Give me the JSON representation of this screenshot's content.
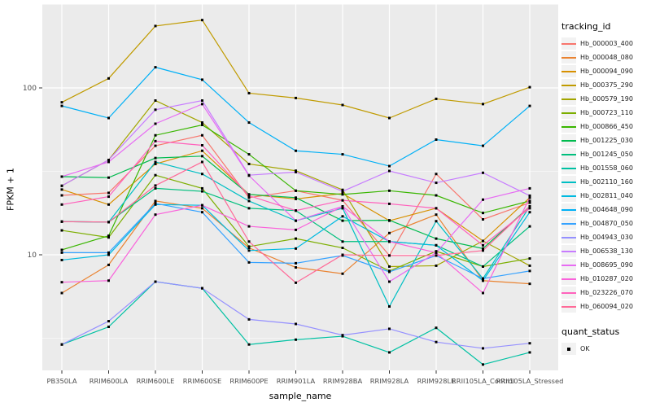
{
  "chart_data": {
    "type": "line",
    "title": "",
    "xlabel": "sample_name",
    "ylabel": "FPKM + 1",
    "y_scale": "log10",
    "y_ticks": [
      10,
      100
    ],
    "y_minor_ticks": [
      3.162,
      31.62,
      316.2
    ],
    "ylim": [
      2,
      300
    ],
    "grid": "major+minor",
    "legend_position": "right",
    "point_shape": "square",
    "point_color": "#000000",
    "panel_bg": "#EBEBEB",
    "grid_color": "#FFFFFF",
    "axis_text_color": "#4D4D4D",
    "categories": [
      "PB350LA",
      "RRIM600LA",
      "RRIM600LE",
      "RRIM600SE",
      "RRIM600PE",
      "RRIM901LA",
      "RRIM928BA",
      "RRIM928LA",
      "RRIM928LE",
      "RRII105LA_Control",
      "RRII105LA_Stressed"
    ],
    "series": [
      {
        "name": "Hb_000003_400",
        "color": "#F8766D",
        "values": [
          22.7,
          23.5,
          45,
          52,
          22,
          24.2,
          21.2,
          9.9,
          30.5,
          16.3,
          20.5
        ]
      },
      {
        "name": "Hb_000048_080",
        "color": "#EA8331",
        "values": [
          5.9,
          8.7,
          21,
          19,
          11,
          8.4,
          7.7,
          13.5,
          17.4,
          7.0,
          6.7
        ]
      },
      {
        "name": "Hb_000094_090",
        "color": "#D89000",
        "values": [
          24.6,
          20,
          35,
          42,
          23,
          21.6,
          23.3,
          16,
          19,
          12.1,
          22
        ]
      },
      {
        "name": "Hb_000375_290",
        "color": "#C09B00",
        "values": [
          82,
          114,
          235,
          255,
          93,
          87,
          79,
          66,
          86,
          80,
          101
        ]
      },
      {
        "name": "Hb_000579_190",
        "color": "#A3A500",
        "values": [
          25.9,
          37,
          84,
          62,
          35,
          31.9,
          24.5,
          8.5,
          8.6,
          12.1,
          8.6
        ]
      },
      {
        "name": "Hb_000723_110",
        "color": "#7CAE00",
        "values": [
          14,
          12.7,
          30,
          25,
          11.2,
          12.5,
          11,
          8,
          10.5,
          8.5,
          9.5
        ]
      },
      {
        "name": "Hb_000866_450",
        "color": "#39B600",
        "values": [
          10.7,
          13,
          52,
          60,
          40,
          24.2,
          23,
          24.2,
          22.7,
          17.8,
          21
        ]
      },
      {
        "name": "Hb_001225_030",
        "color": "#00BB4E",
        "values": [
          29.4,
          29,
          38,
          39,
          23,
          22,
          16,
          16.1,
          12.5,
          10.9,
          19.5
        ]
      },
      {
        "name": "Hb_001245_050",
        "color": "#00BF7D",
        "values": [
          15.8,
          15.7,
          25,
          24,
          19,
          18.4,
          12,
          12,
          11.4,
          8.5,
          14.8
        ]
      },
      {
        "name": "Hb_001558_060",
        "color": "#00C1A3",
        "values": [
          2.9,
          3.7,
          6.9,
          6.3,
          2.9,
          3.1,
          3.25,
          2.6,
          3.65,
          2.2,
          2.6
        ]
      },
      {
        "name": "Hb_002110_160",
        "color": "#00BFC4",
        "values": [
          15.8,
          15.7,
          36,
          30.5,
          21,
          16,
          19,
          4.9,
          15.9,
          7.2,
          19.5
        ]
      },
      {
        "name": "Hb_002811_040",
        "color": "#00BAE0",
        "values": [
          9.3,
          10,
          20,
          19.8,
          10.6,
          10.9,
          17,
          12,
          11.4,
          7.0,
          18
        ]
      },
      {
        "name": "Hb_004648_090",
        "color": "#00B0F6",
        "values": [
          78,
          66,
          133,
          112,
          62,
          42,
          40,
          34,
          49,
          45,
          78
        ]
      },
      {
        "name": "Hb_004870_050",
        "color": "#35A2FF",
        "values": [
          10.3,
          10.3,
          20.3,
          18,
          9.0,
          8.9,
          9.9,
          7.9,
          9.9,
          7.2,
          8.0
        ]
      },
      {
        "name": "Hb_004943_030",
        "color": "#9590FF",
        "values": [
          2.9,
          4.0,
          6.9,
          6.3,
          4.1,
          3.85,
          3.3,
          3.6,
          3.0,
          2.75,
          2.95
        ]
      },
      {
        "name": "Hb_006538_130",
        "color": "#C77CFF",
        "values": [
          25.9,
          37,
          74,
          84,
          30,
          31.3,
          24,
          31.8,
          27,
          31,
          22.6
        ]
      },
      {
        "name": "Hb_008695_090",
        "color": "#E76BF3",
        "values": [
          29.4,
          36,
          61,
          80,
          29.8,
          16,
          19.5,
          6.9,
          10.3,
          21.4,
          25
        ]
      },
      {
        "name": "Hb_010287_020",
        "color": "#FA62DB",
        "values": [
          6.85,
          7.0,
          17.4,
          19.8,
          14.8,
          14.1,
          19.5,
          12,
          10.3,
          5.9,
          22
        ]
      },
      {
        "name": "Hb_023226_070",
        "color": "#FF62BC",
        "values": [
          20,
          22.3,
          48,
          45.3,
          22.6,
          18.4,
          21.2,
          20.2,
          19,
          11.4,
          19
        ]
      },
      {
        "name": "Hb_060094_020",
        "color": "#FF6A98",
        "values": [
          15.8,
          15.7,
          26,
          36,
          12,
          6.8,
          10,
          9.9,
          9.9,
          10.6,
          19.5
        ]
      }
    ]
  },
  "legend": {
    "tracking_title": "tracking_id",
    "quant_title": "quant_status",
    "quant_value": "OK"
  }
}
